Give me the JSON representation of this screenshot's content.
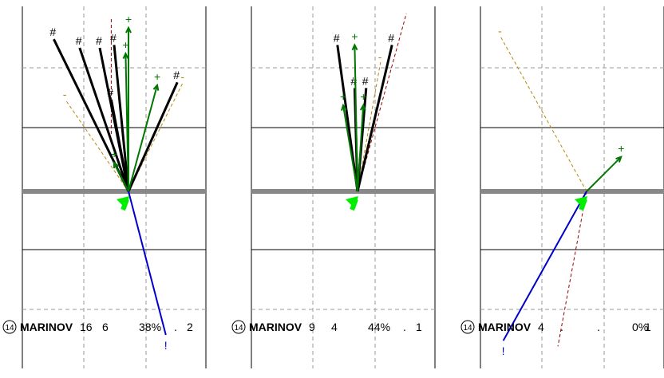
{
  "colors": {
    "made": "#000000",
    "make_attempt": "#007700",
    "miss": "#b8860b",
    "blocked": "#0000cc",
    "dotted": "#990000",
    "arrow": "#00ee00",
    "baseline": "#888888",
    "grid": "#9a9a9a"
  },
  "chart_data": [
    {
      "type": "scatter",
      "player_number": "14",
      "player_name": "MARINOV",
      "stats": [
        "16",
        "6",
        "38%",
        ".",
        "2"
      ],
      "made_marker": "#",
      "attempt_marker": "+",
      "miss_marker": "-",
      "blocked_marker": "!",
      "shots_made": [
        {
          "from": [
            0,
            0
          ],
          "to": [
            -1.3,
            2.65
          ]
        },
        {
          "from": [
            0,
            0
          ],
          "to": [
            -0.85,
            2.5
          ]
        },
        {
          "from": [
            0,
            0
          ],
          "to": [
            -0.5,
            2.5
          ]
        },
        {
          "from": [
            0,
            0
          ],
          "to": [
            -0.25,
            2.55
          ]
        },
        {
          "from": [
            0,
            0
          ],
          "to": [
            0.85,
            1.9
          ]
        },
        {
          "from": [
            0,
            0
          ],
          "to": [
            -0.3,
            1.6
          ]
        }
      ],
      "shots_attempted": [
        {
          "from": [
            0,
            0
          ],
          "to": [
            0,
            2.85
          ]
        },
        {
          "from": [
            0,
            0
          ],
          "to": [
            -0.05,
            2.4
          ]
        },
        {
          "from": [
            0,
            0
          ],
          "to": [
            0.5,
            1.85
          ]
        },
        {
          "from": [
            0,
            0
          ],
          "to": [
            -0.25,
            0.5
          ]
        }
      ],
      "shots_missed": [
        {
          "from": [
            0,
            0
          ],
          "to": [
            0.95,
            1.9
          ]
        },
        {
          "from": [
            0,
            0
          ],
          "to": [
            -1.1,
            1.6
          ]
        }
      ],
      "shots_blocked": [
        {
          "from": [
            0,
            0
          ],
          "to": [
            0.65,
            -2.5
          ]
        }
      ],
      "dotted_lines": [
        {
          "from": [
            -0.3,
            1.0
          ],
          "to": [
            -0.3,
            3.0
          ]
        }
      ]
    },
    {
      "type": "scatter",
      "player_number": "14",
      "player_name": "MARINOV",
      "stats": [
        "9",
        "4",
        "44%",
        ".",
        "1"
      ],
      "made_marker": "#",
      "attempt_marker": "+",
      "miss_marker": "-",
      "blocked_marker": "!",
      "shots_made": [
        {
          "from": [
            0,
            0
          ],
          "to": [
            -0.35,
            2.55
          ]
        },
        {
          "from": [
            0,
            0
          ],
          "to": [
            0.6,
            2.55
          ]
        },
        {
          "from": [
            0,
            0
          ],
          "to": [
            -0.05,
            1.8
          ]
        },
        {
          "from": [
            0,
            0
          ],
          "to": [
            0.15,
            1.8
          ]
        }
      ],
      "shots_attempted": [
        {
          "from": [
            0,
            0
          ],
          "to": [
            -0.05,
            2.55
          ]
        },
        {
          "from": [
            0,
            0
          ],
          "to": [
            -0.25,
            1.5
          ]
        },
        {
          "from": [
            0,
            0
          ],
          "to": [
            0.1,
            1.5
          ]
        }
      ],
      "shots_missed": [
        {
          "from": [
            0,
            0
          ],
          "to": [
            0.4,
            2.25
          ]
        }
      ],
      "shots_blocked": [],
      "dotted_lines": [
        {
          "from": [
            0,
            0
          ],
          "to": [
            0.85,
            3.1
          ]
        }
      ]
    },
    {
      "type": "scatter",
      "player_number": "14",
      "player_name": "MARINOV",
      "stats": [
        "4",
        ".",
        ".",
        "0%",
        "1"
      ],
      "made_marker": "#",
      "attempt_marker": "+",
      "miss_marker": "-",
      "blocked_marker": "!",
      "shots_made": [],
      "shots_attempted": [
        {
          "from": [
            0,
            0
          ],
          "to": [
            0.6,
            0.6
          ]
        }
      ],
      "shots_missed": [
        {
          "from": [
            0,
            0
          ],
          "to": [
            -1.5,
            2.7
          ]
        }
      ],
      "shots_blocked": [
        {
          "from": [
            0,
            0
          ],
          "to": [
            -1.45,
            -2.6
          ]
        }
      ],
      "dotted_lines": [
        {
          "from": [
            0,
            0
          ],
          "to": [
            -0.5,
            -2.7
          ]
        }
      ]
    }
  ]
}
